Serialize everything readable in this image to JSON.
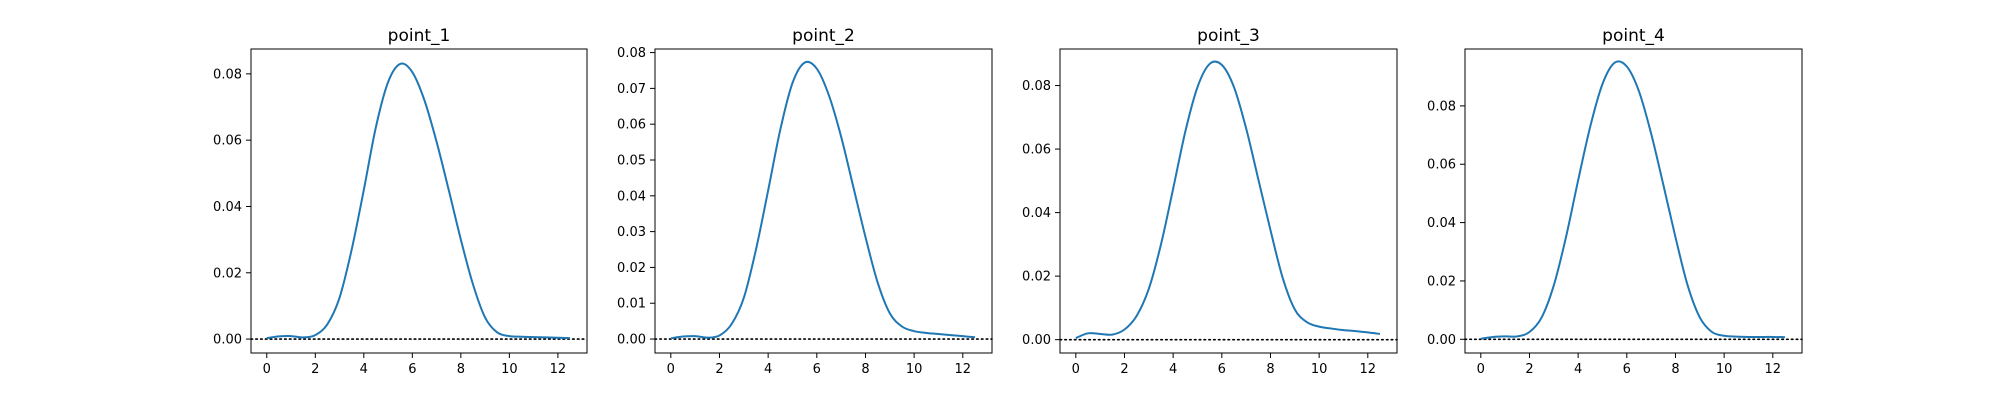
{
  "colors": {
    "line": "#1f77b4",
    "axes": "#000000",
    "zero_line": "#000000",
    "background": "#ffffff"
  },
  "chart_data": [
    {
      "type": "line",
      "title": "point_1",
      "xlabel": "",
      "ylabel": "",
      "xlim": [
        -0.65,
        13.2
      ],
      "ylim": [
        -0.0042,
        0.0875
      ],
      "xticks": [
        0,
        2,
        4,
        6,
        8,
        10,
        12
      ],
      "xtick_labels": [
        "0",
        "2",
        "4",
        "6",
        "8",
        "10",
        "12"
      ],
      "yticks": [
        0,
        0.02,
        0.04,
        0.06,
        0.08
      ],
      "ytick_labels": [
        "0.00",
        "0.02",
        "0.04",
        "0.06",
        "0.08"
      ],
      "grid": false,
      "reference_line": {
        "y": 0,
        "style": "dotted"
      },
      "series": [
        {
          "x": [
            0,
            0.5,
            1,
            1.5,
            2,
            2.5,
            3,
            3.5,
            4,
            4.5,
            5,
            5.5,
            6,
            6.5,
            7,
            7.5,
            8,
            8.5,
            9,
            9.5,
            10,
            10.5,
            11,
            11.5,
            12,
            12.5
          ],
          "y": [
            0.0003,
            0.0008,
            0.0009,
            0.0005,
            0.0012,
            0.0045,
            0.0125,
            0.027,
            0.045,
            0.064,
            0.0775,
            0.083,
            0.0805,
            0.072,
            0.0595,
            0.045,
            0.03,
            0.0165,
            0.0065,
            0.002,
            0.0009,
            0.0007,
            0.0006,
            0.0005,
            0.0004,
            0.0003
          ]
        }
      ]
    },
    {
      "type": "line",
      "title": "point_2",
      "xlabel": "",
      "ylabel": "",
      "xlim": [
        -0.65,
        13.2
      ],
      "ylim": [
        -0.0039,
        0.081
      ],
      "xticks": [
        0,
        2,
        4,
        6,
        8,
        10,
        12
      ],
      "xtick_labels": [
        "0",
        "2",
        "4",
        "6",
        "8",
        "10",
        "12"
      ],
      "yticks": [
        0,
        0.01,
        0.02,
        0.03,
        0.04,
        0.05,
        0.06,
        0.07,
        0.08
      ],
      "ytick_labels": [
        "0.00",
        "0.01",
        "0.02",
        "0.03",
        "0.04",
        "0.05",
        "0.06",
        "0.07",
        "0.08"
      ],
      "grid": false,
      "reference_line": {
        "y": 0,
        "style": "dotted"
      },
      "series": [
        {
          "x": [
            0,
            0.5,
            1,
            1.5,
            2,
            2.5,
            3,
            3.5,
            4,
            4.5,
            5,
            5.5,
            6,
            6.5,
            7,
            7.5,
            8,
            8.5,
            9,
            9.5,
            10,
            10.5,
            11,
            11.5,
            12,
            12.5
          ],
          "y": [
            0.0002,
            0.0007,
            0.0008,
            0.0004,
            0.001,
            0.0042,
            0.0115,
            0.025,
            0.0415,
            0.0585,
            0.0715,
            0.0772,
            0.0755,
            0.068,
            0.0565,
            0.0425,
            0.0285,
            0.0158,
            0.0072,
            0.0035,
            0.0022,
            0.0017,
            0.0014,
            0.0011,
            0.0008,
            0.0005
          ]
        }
      ]
    },
    {
      "type": "line",
      "title": "point_3",
      "xlabel": "",
      "ylabel": "",
      "xlim": [
        -0.65,
        13.2
      ],
      "ylim": [
        -0.0042,
        0.0915
      ],
      "xticks": [
        0,
        2,
        4,
        6,
        8,
        10,
        12
      ],
      "xtick_labels": [
        "0",
        "2",
        "4",
        "6",
        "8",
        "10",
        "12"
      ],
      "yticks": [
        0,
        0.02,
        0.04,
        0.06,
        0.08
      ],
      "ytick_labels": [
        "0.00",
        "0.02",
        "0.04",
        "0.06",
        "0.08"
      ],
      "grid": false,
      "reference_line": {
        "y": 0,
        "style": "dotted"
      },
      "series": [
        {
          "x": [
            0,
            0.5,
            1,
            1.5,
            2,
            2.5,
            3,
            3.5,
            4,
            4.5,
            5,
            5.5,
            6,
            6.5,
            7,
            7.5,
            8,
            8.5,
            9,
            9.5,
            10,
            10.5,
            11,
            11.5,
            12,
            12.5
          ],
          "y": [
            0.0005,
            0.002,
            0.0018,
            0.0016,
            0.0032,
            0.0075,
            0.016,
            0.03,
            0.0475,
            0.0655,
            0.0795,
            0.0868,
            0.0865,
            0.0795,
            0.0665,
            0.0505,
            0.0345,
            0.0195,
            0.0095,
            0.0055,
            0.0041,
            0.0035,
            0.003,
            0.0027,
            0.0023,
            0.0018
          ]
        }
      ]
    },
    {
      "type": "line",
      "title": "point_4",
      "xlabel": "",
      "ylabel": "",
      "xlim": [
        -0.65,
        13.2
      ],
      "ylim": [
        -0.0047,
        0.0995
      ],
      "xticks": [
        0,
        2,
        4,
        6,
        8,
        10,
        12
      ],
      "xtick_labels": [
        "0",
        "2",
        "4",
        "6",
        "8",
        "10",
        "12"
      ],
      "yticks": [
        0,
        0.02,
        0.04,
        0.06,
        0.08
      ],
      "ytick_labels": [
        "0.00",
        "0.02",
        "0.04",
        "0.06",
        "0.08"
      ],
      "grid": false,
      "reference_line": {
        "y": 0,
        "style": "dotted"
      },
      "series": [
        {
          "x": [
            0,
            0.5,
            1,
            1.5,
            2,
            2.5,
            3,
            3.5,
            4,
            4.5,
            5,
            5.5,
            6,
            6.5,
            7,
            7.5,
            8,
            8.5,
            9,
            9.5,
            10,
            10.5,
            11,
            11.5,
            12,
            12.5
          ],
          "y": [
            0.0002,
            0.0008,
            0.001,
            0.001,
            0.0025,
            0.0075,
            0.0185,
            0.035,
            0.0545,
            0.073,
            0.0875,
            0.0948,
            0.0935,
            0.085,
            0.0705,
            0.053,
            0.035,
            0.0185,
            0.0075,
            0.0025,
            0.0012,
            0.0009,
            0.0008,
            0.0008,
            0.0008,
            0.0007
          ]
        }
      ]
    }
  ]
}
